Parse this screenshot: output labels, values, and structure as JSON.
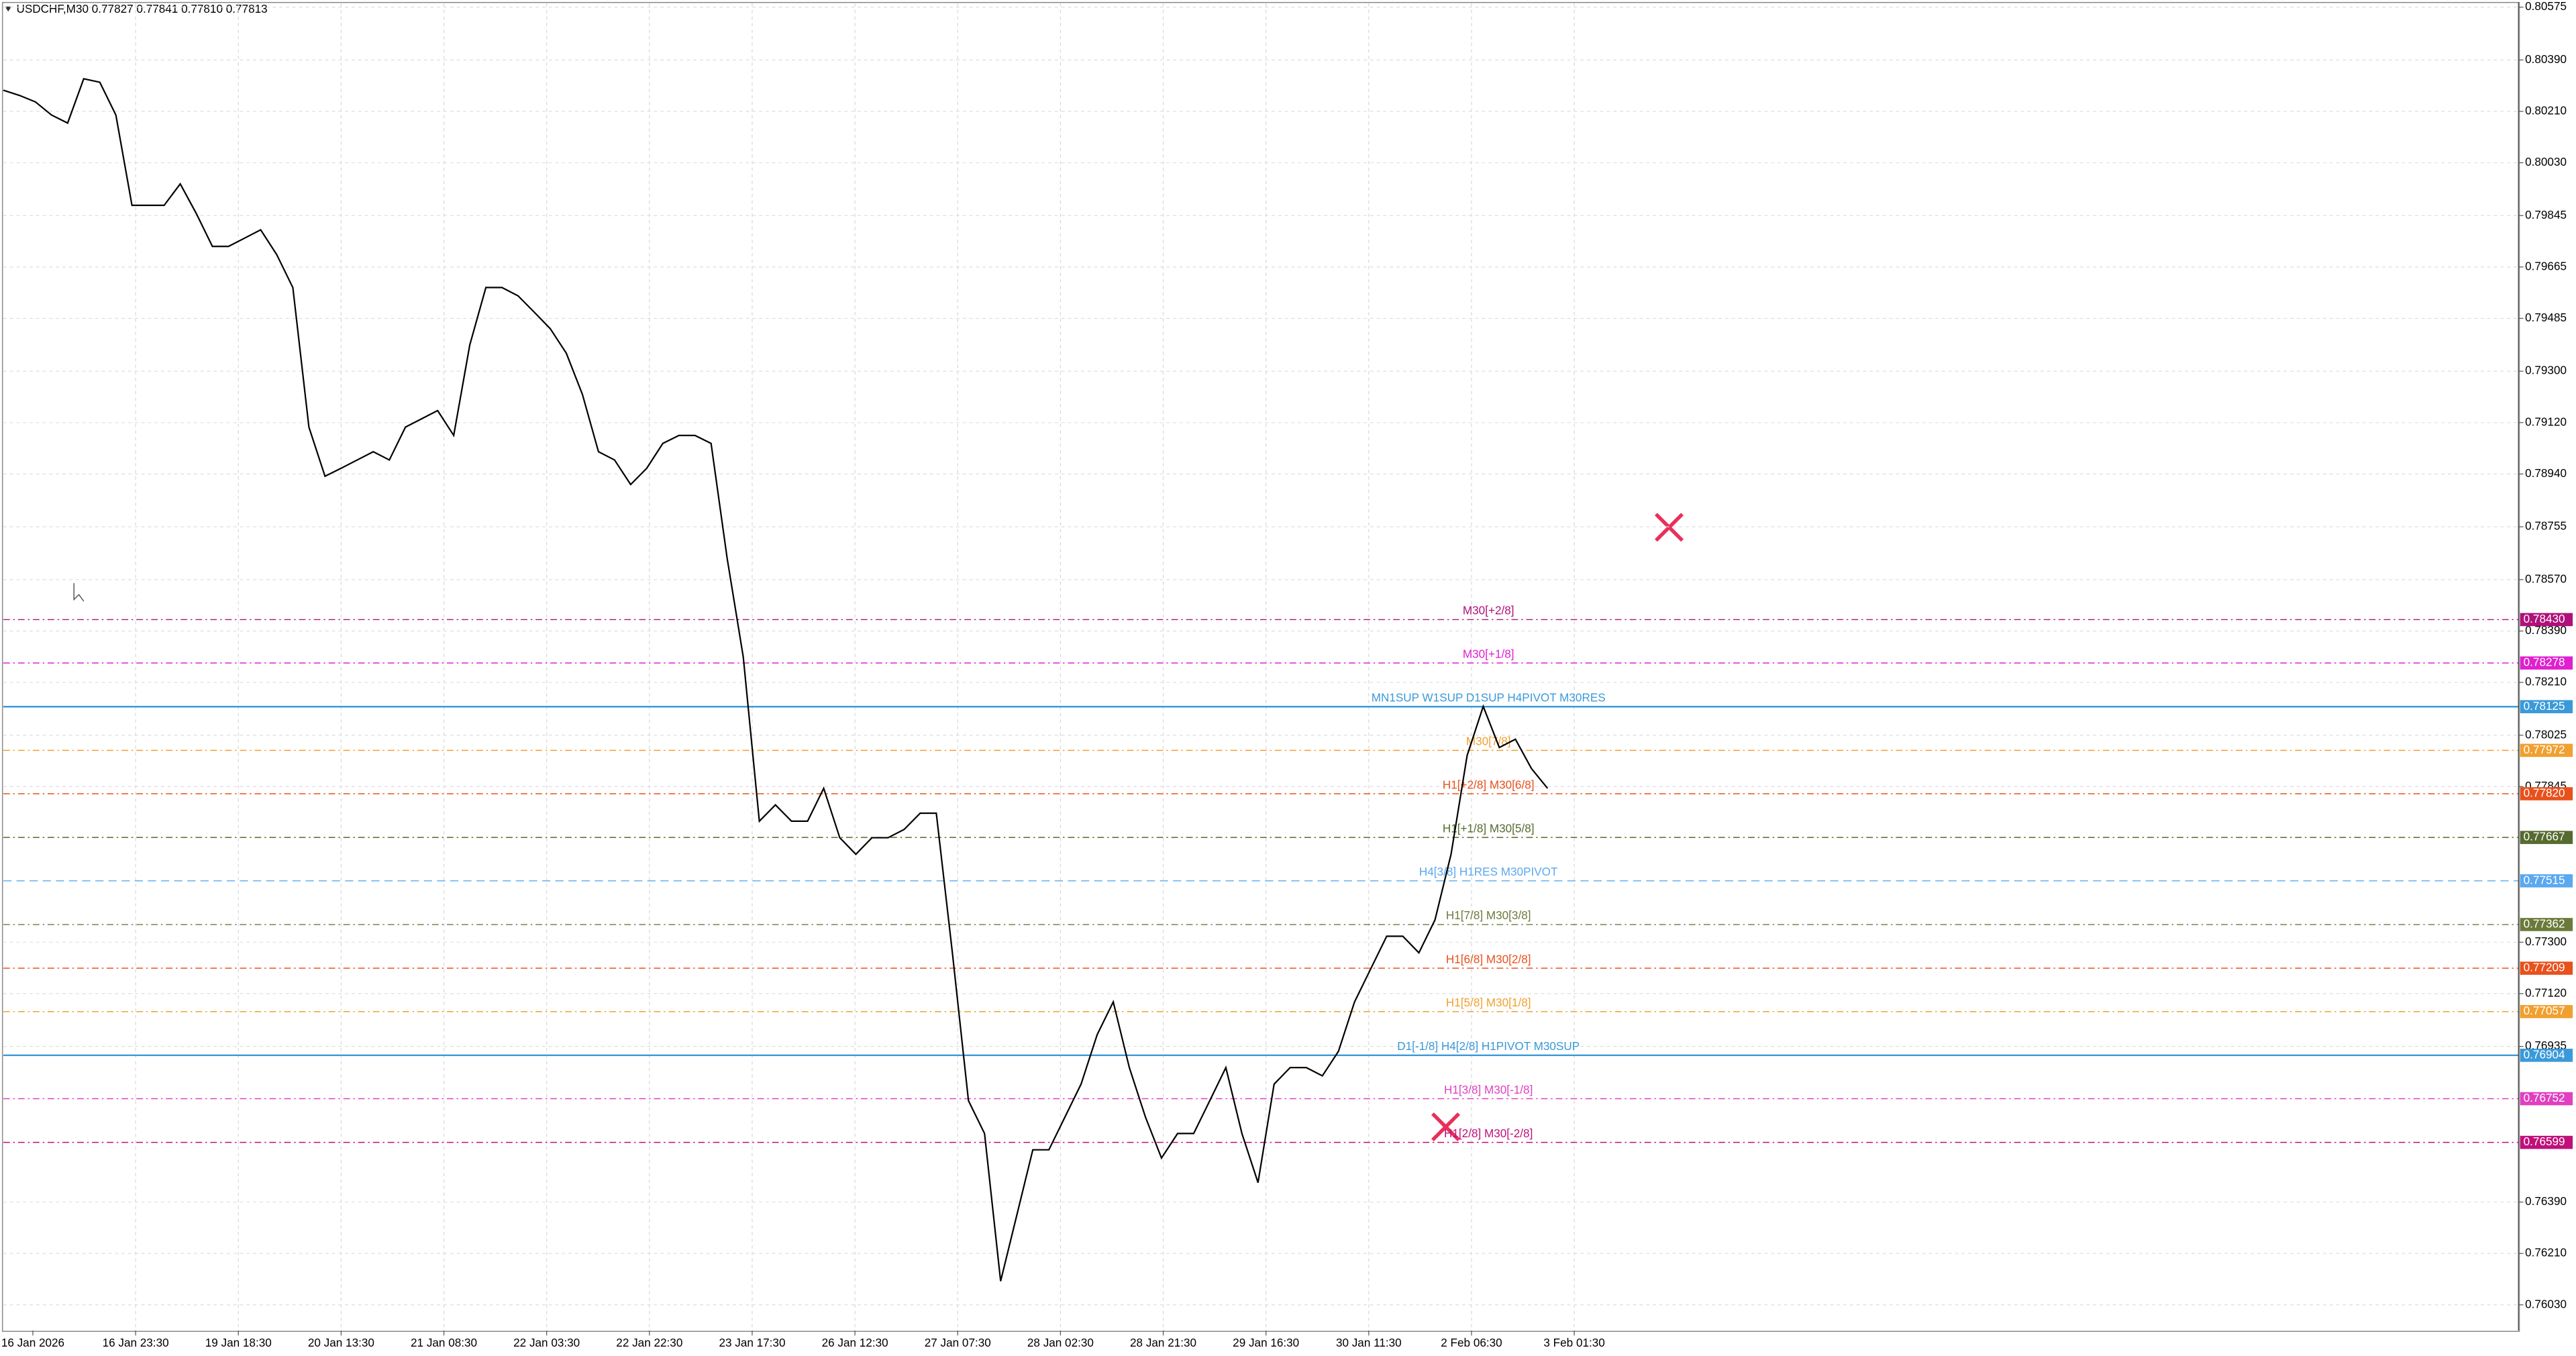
{
  "chart_data": {
    "type": "line",
    "title": "USDCHF,M30  0.77827 0.77841 0.77810 0.77813",
    "color": "#000000",
    "values": [
      0.80284,
      0.80266,
      0.80243,
      0.80197,
      0.80169,
      0.80324,
      0.80312,
      0.80197,
      0.79881,
      0.79881,
      0.79881,
      0.79956,
      0.79852,
      0.79737,
      0.79737,
      0.79766,
      0.79795,
      0.79708,
      0.79593,
      0.79104,
      0.78932,
      0.7896,
      0.78989,
      0.79018,
      0.78989,
      0.79104,
      0.79133,
      0.79162,
      0.79075,
      0.79392,
      0.79593,
      0.79593,
      0.79564,
      0.79507,
      0.79449,
      0.79363,
      0.79219,
      0.79018,
      0.78989,
      0.78903,
      0.7896,
      0.79047,
      0.79075,
      0.79075,
      0.79047,
      0.78644,
      0.78299,
      0.77724,
      0.77781,
      0.77724,
      0.77724,
      0.77839,
      0.77666,
      0.77608,
      0.77666,
      0.77666,
      0.77695,
      0.77752,
      0.77752,
      0.77263,
      0.76745,
      0.7663,
      0.76113,
      0.76343,
      0.76573,
      0.76573,
      0.76688,
      0.76803,
      0.76976,
      0.77091,
      0.76861,
      0.76688,
      0.76544,
      0.7663,
      0.7663,
      0.76745,
      0.76861,
      0.7663,
      0.76458,
      0.76803,
      0.76861,
      0.76861,
      0.76832,
      0.76918,
      0.77091,
      0.77206,
      0.77321,
      0.77321,
      0.77263,
      0.77378,
      0.77608,
      0.77954,
      0.78126,
      0.77982,
      0.78011,
      0.77908,
      0.77839
    ],
    "x_tick_labels": [
      "16 Jan 2026",
      "16 Jan 23:30",
      "19 Jan 18:30",
      "20 Jan 13:30",
      "21 Jan 08:30",
      "22 Jan 03:30",
      "22 Jan 22:30",
      "23 Jan 17:30",
      "26 Jan 12:30",
      "27 Jan 07:30",
      "28 Jan 02:30",
      "28 Jan 21:30",
      "29 Jan 16:30",
      "30 Jan 11:30",
      "2 Feb 06:30",
      "3 Feb 01:30"
    ],
    "ylim": [
      0.7594,
      0.806
    ],
    "yticks": [
      0.80575,
      {
        "value": 0.8039,
        "label": "0.80390"
      },
      {
        "value": 0.8021,
        "label": "0.80210"
      },
      {
        "value": 0.8003,
        "label": "0.80030"
      },
      0.79845,
      0.79665,
      0.79485,
      {
        "value": 0.793,
        "label": "0.79300"
      },
      {
        "value": 0.7912,
        "label": "0.79120"
      },
      {
        "value": 0.7894,
        "label": "0.78940"
      },
      0.78755,
      {
        "value": 0.7857,
        "label": "0.78570"
      },
      {
        "value": 0.7839,
        "label": "0.78390"
      },
      {
        "value": 0.7821,
        "label": "0.78210"
      },
      0.78025,
      0.77845,
      {
        "value": 0.773,
        "label": "0.77300"
      },
      {
        "value": 0.7712,
        "label": "0.77120"
      },
      0.76935,
      {
        "value": 0.7639,
        "label": "0.76390"
      },
      {
        "value": 0.7621,
        "label": "0.76210"
      },
      {
        "value": 0.7603,
        "label": "0.76030"
      }
    ],
    "grid": true,
    "levels": [
      {
        "label": "M30[+2/8]",
        "value": 0.7843,
        "value_label": "0.78430",
        "color": "#b0107a",
        "style": "dashdot"
      },
      {
        "label": "M30[+1/8]",
        "value": 0.78278,
        "color": "#e020d0",
        "style": "dashdot"
      },
      {
        "label": "MN1SUP W1SUP D1SUP H4PIVOT M30RES",
        "value": 0.78125,
        "color": "#3a9ad9",
        "style": "solid"
      },
      {
        "label": "M30[7/8]",
        "value": 0.77972,
        "color": "#f0a030",
        "style": "dashdot"
      },
      {
        "label": "H1[+2/8] M30[6/8]",
        "value": 0.7782,
        "value_label": "0.77820",
        "color": "#e8501c",
        "style": "dashdot"
      },
      {
        "label": "H1[+1/8] M30[5/8]",
        "value": 0.77667,
        "color": "#556b2f",
        "style": "dashdot"
      },
      {
        "label": "H4[3/8] H1RES M30PIVOT",
        "value": 0.77515,
        "color": "#5aa8f0",
        "style": "dashed"
      },
      {
        "label": "H1[7/8] M30[3/8]",
        "value": 0.77362,
        "color": "#6b7a3a",
        "style": "dashdot"
      },
      {
        "label": "H1[6/8] M30[2/8]",
        "value": 0.77209,
        "color": "#e8501c",
        "style": "dashdot"
      },
      {
        "label": "H1[5/8] M30[1/8]",
        "value": 0.77057,
        "color": "#f0a030",
        "style": "dashdot"
      },
      {
        "label": "D1[-1/8] H4[2/8] H1PIVOT M30SUP",
        "value": 0.76904,
        "color": "#3a9ad9",
        "style": "solid"
      },
      {
        "label": "H1[3/8] M30[-1/8]",
        "value": 0.76752,
        "color": "#e040c0",
        "style": "dashdot"
      },
      {
        "label": "H1[2/8] M30[-2/8]",
        "value": 0.76599,
        "color": "#c0107a",
        "style": "dashdot"
      }
    ]
  }
}
